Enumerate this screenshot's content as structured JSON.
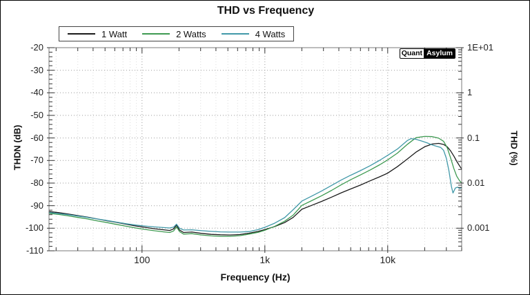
{
  "title": "THD vs Frequency",
  "watermark": {
    "left": "Quant",
    "right": "Asylum"
  },
  "axes": {
    "left_title": "THDN (dB)",
    "right_title": "THD (%)",
    "bottom_title": "Frequency (Hz)",
    "left_tick_labels": [
      "-20",
      "-30",
      "-40",
      "-50",
      "-60",
      "-70",
      "-80",
      "-90",
      "-100",
      "-110"
    ],
    "right_tick_labels": [
      "1E+01",
      "1",
      "0.1",
      "0.01",
      "0.001"
    ],
    "bottom_tick_labels": [
      "100",
      "1k",
      "10k"
    ]
  },
  "colors": {
    "series_1w": "#1a1a1a",
    "series_2w": "#3d9950",
    "series_4w": "#4098a8",
    "major_grid": "#9a9a9a",
    "minor_grid": "#dcdcdc",
    "axis_border": "#7a7a7a",
    "tick": "#333333"
  },
  "chart_data": {
    "type": "line",
    "title": "THD vs Frequency",
    "xlabel": "Frequency (Hz)",
    "ylabel_left": "THDN (dB)",
    "ylabel_right": "THD (%)",
    "x_scale": "log",
    "xlim": [
      17.5,
      40000
    ],
    "ylim": [
      -110,
      -20
    ],
    "x_major_ticks": [
      100,
      1000,
      10000
    ],
    "y_major_ticks": [
      -20,
      -30,
      -40,
      -50,
      -60,
      -70,
      -80,
      -90,
      -100,
      -110
    ],
    "right_axis_percent_ticks": [
      10,
      1,
      0.1,
      0.01,
      0.001
    ],
    "grid": "dotted major gridlines at decades and 10 dB steps, faint dotted minor vertical gridlines",
    "legend_position": "top-left above plot area",
    "series": [
      {
        "name": "1 Watt",
        "color": "#1a1a1a",
        "points": [
          [
            17.5,
            -92.6
          ],
          [
            21,
            -93.1
          ],
          [
            25,
            -93.7
          ],
          [
            30,
            -94.4
          ],
          [
            36,
            -95.1
          ],
          [
            43,
            -95.9
          ],
          [
            52,
            -96.7
          ],
          [
            62,
            -97.4
          ],
          [
            74,
            -98.2
          ],
          [
            89,
            -99.0
          ],
          [
            105,
            -99.6
          ],
          [
            125,
            -100.2
          ],
          [
            150,
            -100.7
          ],
          [
            168,
            -101.0
          ],
          [
            181,
            -100.3
          ],
          [
            191,
            -98.6
          ],
          [
            202,
            -100.8
          ],
          [
            218,
            -101.9
          ],
          [
            255,
            -101.7
          ],
          [
            305,
            -102.3
          ],
          [
            365,
            -102.7
          ],
          [
            435,
            -102.9
          ],
          [
            520,
            -103.0
          ],
          [
            625,
            -102.8
          ],
          [
            745,
            -102.2
          ],
          [
            885,
            -101.4
          ],
          [
            1000,
            -100.6
          ],
          [
            1200,
            -99.3
          ],
          [
            1450,
            -97.5
          ],
          [
            1700,
            -95.2
          ],
          [
            2000,
            -91.6
          ],
          [
            2400,
            -89.9
          ],
          [
            2900,
            -88.1
          ],
          [
            3500,
            -86.2
          ],
          [
            4200,
            -84.3
          ],
          [
            5000,
            -82.6
          ],
          [
            6000,
            -80.9
          ],
          [
            7200,
            -79.0
          ],
          [
            8600,
            -77.2
          ],
          [
            10000,
            -75.6
          ],
          [
            12000,
            -72.7
          ],
          [
            14500,
            -69.3
          ],
          [
            17000,
            -66.3
          ],
          [
            20000,
            -63.9
          ],
          [
            23000,
            -62.7
          ],
          [
            26000,
            -62.4
          ],
          [
            28500,
            -62.9
          ],
          [
            30500,
            -63.9
          ],
          [
            32500,
            -65.7
          ],
          [
            34500,
            -68.0
          ],
          [
            36500,
            -70.4
          ],
          [
            38500,
            -72.4
          ],
          [
            40000,
            -73.8
          ]
        ]
      },
      {
        "name": "2 Watts",
        "color": "#3d9950",
        "points": [
          [
            17.5,
            -93.4
          ],
          [
            21,
            -93.9
          ],
          [
            25,
            -94.5
          ],
          [
            30,
            -95.2
          ],
          [
            36,
            -95.9
          ],
          [
            43,
            -96.7
          ],
          [
            52,
            -97.5
          ],
          [
            62,
            -98.3
          ],
          [
            74,
            -99.1
          ],
          [
            89,
            -99.9
          ],
          [
            105,
            -100.5
          ],
          [
            125,
            -101.1
          ],
          [
            150,
            -101.6
          ],
          [
            168,
            -101.9
          ],
          [
            181,
            -101.2
          ],
          [
            191,
            -99.4
          ],
          [
            202,
            -101.5
          ],
          [
            218,
            -102.6
          ],
          [
            255,
            -102.4
          ],
          [
            305,
            -103.0
          ],
          [
            365,
            -103.4
          ],
          [
            435,
            -103.6
          ],
          [
            520,
            -103.6
          ],
          [
            625,
            -103.3
          ],
          [
            745,
            -102.6
          ],
          [
            885,
            -101.8
          ],
          [
            1000,
            -100.9
          ],
          [
            1200,
            -99.2
          ],
          [
            1450,
            -96.9
          ],
          [
            1700,
            -94.2
          ],
          [
            2000,
            -89.9
          ],
          [
            2400,
            -87.8
          ],
          [
            2900,
            -85.6
          ],
          [
            3500,
            -83.2
          ],
          [
            4200,
            -80.7
          ],
          [
            5000,
            -78.5
          ],
          [
            6000,
            -76.4
          ],
          [
            7200,
            -74.2
          ],
          [
            8600,
            -71.9
          ],
          [
            10000,
            -69.7
          ],
          [
            12000,
            -66.7
          ],
          [
            14500,
            -62.8
          ],
          [
            17000,
            -59.9
          ],
          [
            20000,
            -59.3
          ],
          [
            23000,
            -59.4
          ],
          [
            26000,
            -60.1
          ],
          [
            28500,
            -61.5
          ],
          [
            30500,
            -64.3
          ],
          [
            32500,
            -68.8
          ],
          [
            34500,
            -73.5
          ],
          [
            36500,
            -77.0
          ],
          [
            38500,
            -79.0
          ],
          [
            40000,
            -80.0
          ]
        ]
      },
      {
        "name": "4 Watts",
        "color": "#4098a8",
        "points": [
          [
            17.5,
            -93.0
          ],
          [
            21,
            -93.5
          ],
          [
            25,
            -94.0
          ],
          [
            30,
            -94.6
          ],
          [
            36,
            -95.2
          ],
          [
            43,
            -95.9
          ],
          [
            52,
            -96.6
          ],
          [
            62,
            -97.3
          ],
          [
            74,
            -98.0
          ],
          [
            89,
            -98.6
          ],
          [
            105,
            -99.0
          ],
          [
            125,
            -99.4
          ],
          [
            150,
            -99.7
          ],
          [
            168,
            -99.9
          ],
          [
            181,
            -99.5
          ],
          [
            191,
            -98.2
          ],
          [
            202,
            -100.0
          ],
          [
            218,
            -100.8
          ],
          [
            255,
            -100.7
          ],
          [
            305,
            -101.1
          ],
          [
            365,
            -101.4
          ],
          [
            435,
            -101.6
          ],
          [
            520,
            -101.7
          ],
          [
            625,
            -101.7
          ],
          [
            745,
            -101.5
          ],
          [
            885,
            -100.6
          ],
          [
            1000,
            -99.6
          ],
          [
            1200,
            -97.8
          ],
          [
            1450,
            -95.3
          ],
          [
            1700,
            -91.8
          ],
          [
            2000,
            -88.0
          ],
          [
            2400,
            -85.8
          ],
          [
            2900,
            -83.5
          ],
          [
            3500,
            -81.0
          ],
          [
            4200,
            -78.6
          ],
          [
            5000,
            -76.5
          ],
          [
            6000,
            -74.5
          ],
          [
            7200,
            -72.3
          ],
          [
            8600,
            -69.9
          ],
          [
            10000,
            -67.7
          ],
          [
            12000,
            -64.9
          ],
          [
            14500,
            -61.1
          ],
          [
            15500,
            -60.3
          ],
          [
            17000,
            -60.6
          ],
          [
            19000,
            -61.4
          ],
          [
            21000,
            -62.2
          ],
          [
            23000,
            -63.1
          ],
          [
            25000,
            -63.7
          ],
          [
            27000,
            -64.2
          ],
          [
            28500,
            -65.5
          ],
          [
            30000,
            -69.0
          ],
          [
            31500,
            -74.5
          ],
          [
            33000,
            -81.5
          ],
          [
            34000,
            -84.4
          ],
          [
            35500,
            -82.2
          ],
          [
            37000,
            -81.8
          ],
          [
            38500,
            -82.4
          ],
          [
            40000,
            -82.1
          ]
        ]
      }
    ]
  }
}
